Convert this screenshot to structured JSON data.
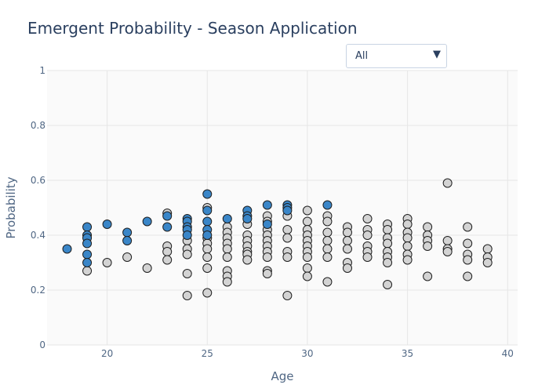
{
  "title": "Emergent Probability - Season Application",
  "dropdown": {
    "selected": "All",
    "arrow_icon": "triangle-down-icon"
  },
  "colors": {
    "highlight": "#3a86c8",
    "default": "#d3d3d3",
    "stroke": "#1f1f1f",
    "plot_bg": "#fafafa",
    "grid": "#e6e6e6"
  },
  "chart_data": {
    "type": "scatter",
    "xlabel": "Age",
    "ylabel": "Probability",
    "xlim": [
      17,
      40.5
    ],
    "ylim": [
      0,
      1
    ],
    "xticks": [
      20,
      25,
      30,
      35,
      40
    ],
    "yticks": [
      0,
      0.2,
      0.4,
      0.6,
      0.8,
      1
    ],
    "grid": true,
    "series": [
      {
        "points": [
          [
            18,
            0.35
          ],
          [
            19,
            0.43
          ],
          [
            19,
            0.4
          ],
          [
            19,
            0.39
          ],
          [
            19,
            0.37
          ],
          [
            19,
            0.33
          ],
          [
            19,
            0.3
          ],
          [
            20,
            0.44
          ],
          [
            21,
            0.41
          ],
          [
            21,
            0.38
          ],
          [
            22,
            0.45
          ],
          [
            23,
            0.47
          ],
          [
            23,
            0.43
          ],
          [
            24,
            0.46
          ],
          [
            24,
            0.45
          ],
          [
            24,
            0.43
          ],
          [
            24,
            0.42
          ],
          [
            24,
            0.4
          ],
          [
            25,
            0.55
          ],
          [
            25,
            0.49
          ],
          [
            25,
            0.45
          ],
          [
            25,
            0.42
          ],
          [
            25,
            0.4
          ],
          [
            26,
            0.46
          ],
          [
            27,
            0.49
          ],
          [
            27,
            0.47
          ],
          [
            27,
            0.46
          ],
          [
            28,
            0.51
          ],
          [
            28,
            0.44
          ],
          [
            29,
            0.51
          ],
          [
            29,
            0.5
          ],
          [
            29,
            0.49
          ],
          [
            31,
            0.51
          ]
        ]
      },
      {
        "points": [
          [
            19,
            0.27
          ],
          [
            20,
            0.3
          ],
          [
            21,
            0.32
          ],
          [
            22,
            0.28
          ],
          [
            23,
            0.48
          ],
          [
            23,
            0.36
          ],
          [
            23,
            0.34
          ],
          [
            23,
            0.31
          ],
          [
            24,
            0.38
          ],
          [
            24,
            0.35
          ],
          [
            24,
            0.33
          ],
          [
            24,
            0.26
          ],
          [
            24,
            0.18
          ],
          [
            25,
            0.5
          ],
          [
            25,
            0.39
          ],
          [
            25,
            0.37
          ],
          [
            25,
            0.35
          ],
          [
            25,
            0.32
          ],
          [
            25,
            0.28
          ],
          [
            25,
            0.19
          ],
          [
            26,
            0.43
          ],
          [
            26,
            0.41
          ],
          [
            26,
            0.39
          ],
          [
            26,
            0.37
          ],
          [
            26,
            0.35
          ],
          [
            26,
            0.32
          ],
          [
            26,
            0.27
          ],
          [
            26,
            0.25
          ],
          [
            26,
            0.23
          ],
          [
            27,
            0.44
          ],
          [
            27,
            0.4
          ],
          [
            27,
            0.38
          ],
          [
            27,
            0.36
          ],
          [
            27,
            0.34
          ],
          [
            27,
            0.33
          ],
          [
            27,
            0.31
          ],
          [
            28,
            0.47
          ],
          [
            28,
            0.45
          ],
          [
            28,
            0.42
          ],
          [
            28,
            0.4
          ],
          [
            28,
            0.38
          ],
          [
            28,
            0.36
          ],
          [
            28,
            0.34
          ],
          [
            28,
            0.32
          ],
          [
            28,
            0.27
          ],
          [
            28,
            0.26
          ],
          [
            29,
            0.47
          ],
          [
            29,
            0.42
          ],
          [
            29,
            0.39
          ],
          [
            29,
            0.34
          ],
          [
            29,
            0.32
          ],
          [
            29,
            0.18
          ],
          [
            30,
            0.49
          ],
          [
            30,
            0.45
          ],
          [
            30,
            0.42
          ],
          [
            30,
            0.4
          ],
          [
            30,
            0.38
          ],
          [
            30,
            0.36
          ],
          [
            30,
            0.34
          ],
          [
            30,
            0.32
          ],
          [
            30,
            0.28
          ],
          [
            30,
            0.25
          ],
          [
            31,
            0.47
          ],
          [
            31,
            0.45
          ],
          [
            31,
            0.41
          ],
          [
            31,
            0.38
          ],
          [
            31,
            0.35
          ],
          [
            31,
            0.32
          ],
          [
            31,
            0.23
          ],
          [
            32,
            0.43
          ],
          [
            32,
            0.41
          ],
          [
            32,
            0.38
          ],
          [
            32,
            0.35
          ],
          [
            32,
            0.3
          ],
          [
            32,
            0.28
          ],
          [
            33,
            0.46
          ],
          [
            33,
            0.42
          ],
          [
            33,
            0.4
          ],
          [
            33,
            0.36
          ],
          [
            33,
            0.34
          ],
          [
            33,
            0.32
          ],
          [
            34,
            0.44
          ],
          [
            34,
            0.42
          ],
          [
            34,
            0.39
          ],
          [
            34,
            0.37
          ],
          [
            34,
            0.34
          ],
          [
            34,
            0.32
          ],
          [
            34,
            0.3
          ],
          [
            34,
            0.22
          ],
          [
            35,
            0.46
          ],
          [
            35,
            0.44
          ],
          [
            35,
            0.41
          ],
          [
            35,
            0.39
          ],
          [
            35,
            0.36
          ],
          [
            35,
            0.33
          ],
          [
            35,
            0.31
          ],
          [
            36,
            0.43
          ],
          [
            36,
            0.4
          ],
          [
            36,
            0.38
          ],
          [
            36,
            0.36
          ],
          [
            36,
            0.25
          ],
          [
            37,
            0.59
          ],
          [
            37,
            0.38
          ],
          [
            37,
            0.35
          ],
          [
            37,
            0.34
          ],
          [
            38,
            0.43
          ],
          [
            38,
            0.37
          ],
          [
            38,
            0.33
          ],
          [
            38,
            0.31
          ],
          [
            38,
            0.25
          ],
          [
            39,
            0.35
          ],
          [
            39,
            0.32
          ],
          [
            39,
            0.3
          ]
        ]
      }
    ]
  }
}
